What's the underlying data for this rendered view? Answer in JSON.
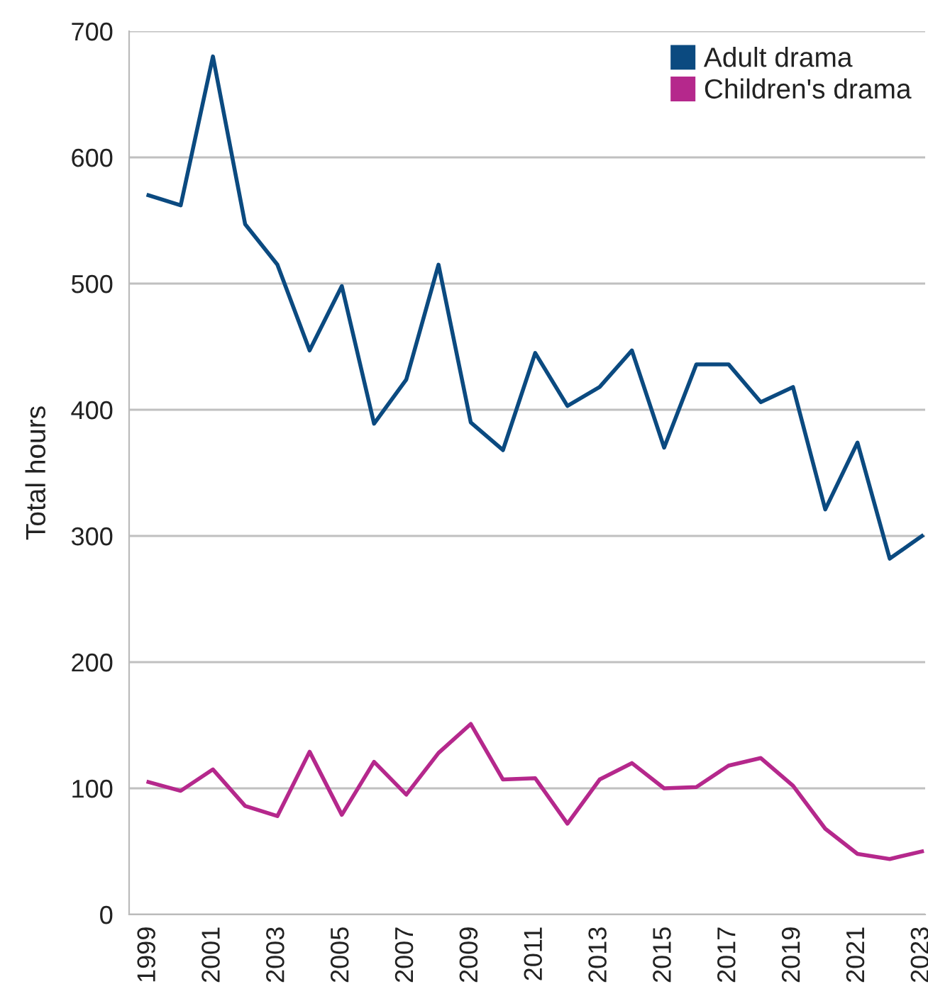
{
  "chart_data": {
    "type": "line",
    "ylabel": "Total hours",
    "x": [
      1999,
      2000,
      2001,
      2002,
      2003,
      2004,
      2005,
      2006,
      2007,
      2008,
      2009,
      2010,
      2011,
      2012,
      2013,
      2014,
      2015,
      2016,
      2017,
      2018,
      2019,
      2020,
      2021,
      2022,
      2023
    ],
    "series": [
      {
        "name": "Adult drama",
        "color": "#0b4a80",
        "values": [
          570,
          562,
          680,
          547,
          515,
          447,
          498,
          389,
          424,
          515,
          390,
          368,
          445,
          403,
          418,
          447,
          370,
          436,
          436,
          406,
          418,
          321,
          374,
          282,
          300
        ]
      },
      {
        "name": "Children's drama",
        "color": "#b5288c",
        "values": [
          105,
          98,
          115,
          86,
          78,
          129,
          79,
          121,
          95,
          128,
          151,
          107,
          108,
          72,
          107,
          120,
          100,
          101,
          118,
          124,
          102,
          68,
          48,
          44,
          50
        ]
      }
    ],
    "xlim": [
      1998.4,
      2023.1
    ],
    "xticks": [
      1999,
      2001,
      2003,
      2005,
      2007,
      2009,
      2011,
      2013,
      2015,
      2017,
      2019,
      2021,
      2023
    ],
    "ylim": [
      0,
      700
    ],
    "yticks": [
      0,
      100,
      200,
      300,
      400,
      500,
      600,
      700
    ],
    "grid": "y",
    "legend": "top right",
    "marker": "none",
    "line_style": "solid"
  }
}
